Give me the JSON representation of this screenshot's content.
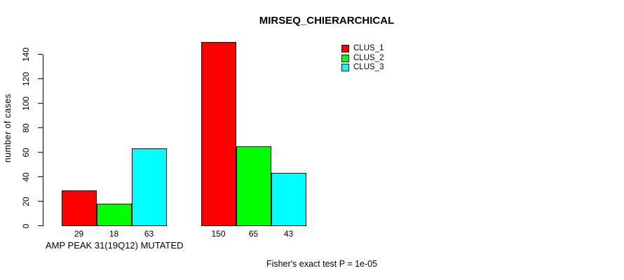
{
  "chart_data": {
    "type": "bar",
    "title": "MIRSEQ_CHIERARCHICAL",
    "ylabel": "number of cases",
    "xlabel": "AMP PEAK 31(19Q12) MUTATED",
    "footnote": "Fisher's exact test P = 1e-05",
    "series": [
      {
        "name": "CLUS_1",
        "color": "#ff0000",
        "values": [
          29,
          150
        ]
      },
      {
        "name": "CLUS_2",
        "color": "#00ff00",
        "values": [
          18,
          65
        ]
      },
      {
        "name": "CLUS_3",
        "color": "#00ffff",
        "values": [
          63,
          43
        ]
      }
    ],
    "bar_value_labels": [
      [
        "29",
        "18",
        "63"
      ],
      [
        "150",
        "65",
        "43"
      ]
    ],
    "y_ticks": [
      0,
      20,
      40,
      60,
      80,
      100,
      120,
      140
    ],
    "ylim": [
      0,
      150
    ],
    "grid": false,
    "legend_position": "top-right",
    "colors": {
      "background": "#ffffff",
      "axis": "#000000",
      "bar_border": "#000000"
    }
  }
}
